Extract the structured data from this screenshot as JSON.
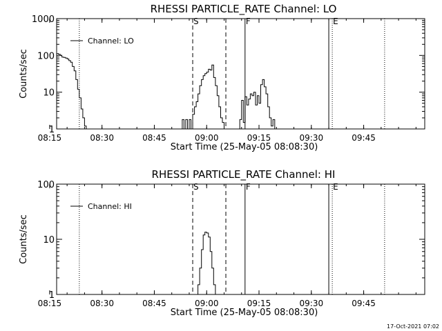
{
  "footer": {
    "timestamp": "17-Oct-2021 07:02"
  },
  "chart_data": [
    {
      "type": "line",
      "title": "RHESSI PARTICLE_RATE Channel: LO",
      "xlabel": "Start Time (25-May-05 08:08:30)",
      "ylabel": "Counts/sec",
      "yscale": "log",
      "xlim": [
        8.5,
        114
      ],
      "ylim": [
        1,
        1000
      ],
      "xtick_values": [
        6.5,
        21.5,
        36.5,
        51.5,
        66.5,
        81.5,
        96.5
      ],
      "xtick_labels": [
        "08:15",
        "08:30",
        "08:45",
        "09:00",
        "09:15",
        "09:30",
        "09:45"
      ],
      "ytick_values": [
        1,
        10,
        100,
        1000
      ],
      "ytick_labels": [
        "1",
        "10",
        "100",
        "1000"
      ],
      "legend": {
        "placement": "top-left",
        "entries": [
          "Channel: LO"
        ]
      },
      "markers": [
        {
          "x": 0.2,
          "label": "E",
          "style": "dotted"
        },
        {
          "x": 15.0,
          "label": "",
          "style": "dotted"
        },
        {
          "x": 47.5,
          "label": "S",
          "style": "dashed"
        },
        {
          "x": 57.0,
          "label": "",
          "style": "dashed"
        },
        {
          "x": 62.5,
          "label": "F",
          "style": "solid"
        },
        {
          "x": 86.5,
          "label": "",
          "style": "solid"
        },
        {
          "x": 87.5,
          "label": "E",
          "style": "dotted"
        },
        {
          "x": 102.5,
          "label": "",
          "style": "dotted"
        }
      ],
      "series": [
        {
          "name": "Channel: LO",
          "x": [
            -1.5,
            2.0,
            2.5,
            3.0,
            3.5,
            4.0,
            4.5,
            5.0,
            5.5,
            6.0,
            6.5,
            7.0,
            7.5,
            8.0,
            8.5,
            9.0,
            9.5,
            10.0,
            10.5,
            11.0,
            11.5,
            12.0,
            12.5,
            13.0,
            13.5,
            14.0,
            14.5,
            15.0,
            15.5,
            16.0,
            16.5,
            17.0,
            17.5,
            18.0
          ],
          "y": [
            1.8,
            1.8,
            0.5,
            1.8,
            0.5,
            1.8,
            3.0,
            8.0,
            70,
            50,
            75,
            90,
            110,
            105,
            112,
            108,
            100,
            90,
            88,
            85,
            80,
            72,
            65,
            50,
            38,
            22,
            12,
            7,
            3.5,
            2.0,
            1.2,
            0.5,
            null,
            null
          ]
        },
        {
          "name": "",
          "x": [
            44.0,
            44.5,
            45.0,
            45.5,
            46.0,
            46.5,
            47.0,
            47.5,
            48.0,
            48.5,
            49.0,
            49.5,
            50.0,
            50.5,
            51.0,
            51.5,
            52.0,
            52.5,
            53.0,
            53.5,
            54.0,
            54.5,
            55.0,
            55.5,
            56.0,
            56.5
          ],
          "y": [
            0.5,
            1.8,
            0.5,
            1.8,
            0.8,
            1.8,
            0.5,
            2.5,
            4.0,
            5.5,
            9.0,
            15,
            22,
            28,
            32,
            35,
            42,
            40,
            55,
            25,
            15,
            8.0,
            4.0,
            2.0,
            1.5,
            0.5
          ]
        },
        {
          "name": "",
          "x": [
            60.5,
            61.0,
            61.5,
            62.0,
            62.5,
            63.0,
            63.5,
            64.0,
            64.5,
            65.0,
            65.5,
            66.0,
            66.5,
            67.0,
            67.5,
            68.0,
            68.5,
            69.0,
            69.5,
            70.0,
            70.5,
            71.0,
            71.5
          ],
          "y": [
            0.5,
            1.8,
            6.0,
            1.5,
            7.5,
            4.5,
            6.5,
            9.0,
            8.0,
            10,
            4.5,
            8.0,
            5.0,
            16,
            22,
            14,
            9.0,
            4.0,
            2.0,
            1.2,
            1.8,
            1.0,
            0.5
          ]
        }
      ]
    },
    {
      "type": "line",
      "title": "RHESSI PARTICLE_RATE Channel: HI",
      "xlabel": "Start Time (25-May-05 08:08:30)",
      "ylabel": "Counts/sec",
      "yscale": "log",
      "xlim": [
        8.5,
        114
      ],
      "ylim": [
        1,
        100
      ],
      "xtick_values": [
        6.5,
        21.5,
        36.5,
        51.5,
        66.5,
        81.5,
        96.5
      ],
      "xtick_labels": [
        "08:15",
        "08:30",
        "08:45",
        "09:00",
        "09:15",
        "09:30",
        "09:45"
      ],
      "ytick_values": [
        1,
        10,
        100
      ],
      "ytick_labels": [
        "1",
        "10",
        "100"
      ],
      "legend": {
        "placement": "top-left",
        "entries": [
          "Channel: HI"
        ]
      },
      "markers": [
        {
          "x": 0.2,
          "label": "E",
          "style": "dotted"
        },
        {
          "x": 15.0,
          "label": "",
          "style": "dotted"
        },
        {
          "x": 47.5,
          "label": "S",
          "style": "dashed"
        },
        {
          "x": 57.0,
          "label": "",
          "style": "dashed"
        },
        {
          "x": 62.5,
          "label": "F",
          "style": "solid"
        },
        {
          "x": 86.5,
          "label": "",
          "style": "solid"
        },
        {
          "x": 87.5,
          "label": "E",
          "style": "dotted"
        },
        {
          "x": 102.5,
          "label": "",
          "style": "dotted"
        }
      ],
      "series": [
        {
          "name": "Channel: HI",
          "x": [
            48.5,
            49.0,
            49.5,
            50.0,
            50.5,
            51.0,
            51.5,
            52.0,
            52.5,
            53.0,
            53.5,
            54.0,
            54.5
          ],
          "y": [
            0.5,
            1.5,
            3.0,
            6.5,
            12,
            13.5,
            13,
            11,
            6.0,
            3.0,
            1.5,
            1.0,
            0.5
          ]
        }
      ]
    }
  ]
}
